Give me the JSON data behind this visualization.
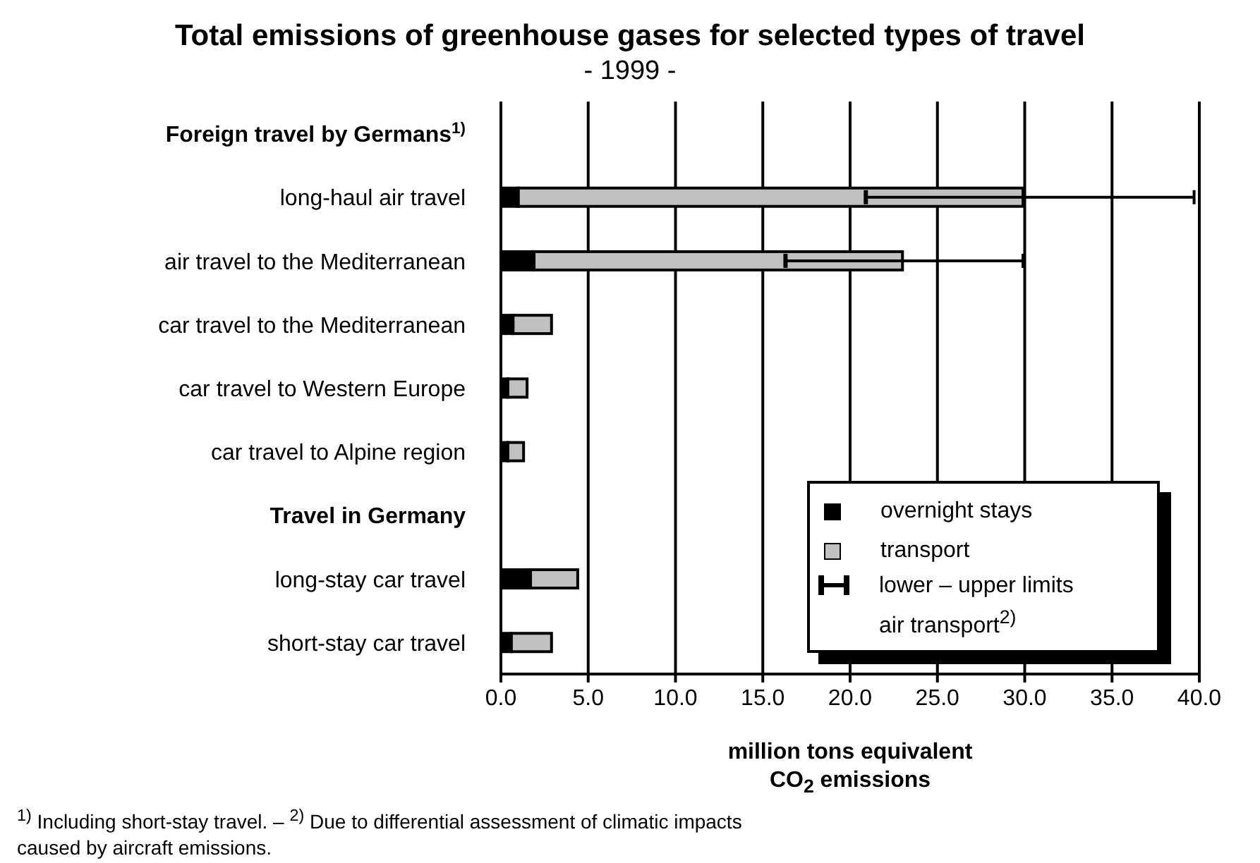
{
  "chart_data": {
    "type": "bar",
    "orientation": "horizontal",
    "stacked": true,
    "title": "Total emissions of greenhouse gases for selected types of travel",
    "subtitle": "- 1999 -",
    "xlabel": "million tons equivalent CO$_{2}$ emissions",
    "categories": [
      "Foreign travel by Germans$^{1)}$",
      "long-haul air travel",
      "air travel to the Mediterranean",
      "car travel to the Mediterranean",
      "car travel to Western Europe",
      "car travel to Alpine region",
      "Travel in Germany",
      "long-stay car travel",
      "short-stay car travel"
    ],
    "series": [
      {
        "name": "overnight stays",
        "color": "#000000",
        "values": [
          null,
          1.0,
          1.9,
          0.7,
          0.4,
          0.4,
          null,
          1.7,
          0.6
        ]
      },
      {
        "name": "transport",
        "color": "#c0c0c0",
        "values": [
          null,
          28.9,
          21.1,
          2.2,
          1.1,
          0.9,
          null,
          2.7,
          2.3
        ],
        "errors": [
          null,
          [
            20.9,
            39.7
          ],
          [
            16.3,
            29.9
          ],
          null,
          null,
          null,
          null,
          null,
          null
        ]
      }
    ],
    "xlim": [
      0,
      40
    ],
    "xticks": [
      {
        "value": 0,
        "label": "0.0"
      },
      {
        "value": 5,
        "label": "5.0"
      },
      {
        "value": 10,
        "label": "10.0"
      },
      {
        "value": 15,
        "label": "15.0"
      },
      {
        "value": 20,
        "label": "20.0"
      },
      {
        "value": 25,
        "label": "25.0"
      },
      {
        "value": 30,
        "label": "30.0"
      },
      {
        "value": 35,
        "label": "35.0"
      },
      {
        "value": 40,
        "label": "40.0"
      }
    ],
    "grid": "x",
    "legend": "bottom right",
    "annotations": [
      "lower – upper limits air transport$^{2)}$",
      "$^{1)}$ Including short-stay travel. – $^{2)}$ Due to differential assessment of climatic impacts caused by aircraft emissions."
    ]
  }
}
